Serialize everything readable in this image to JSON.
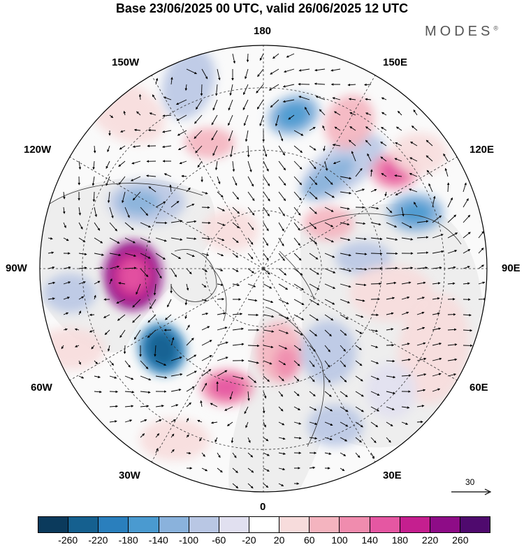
{
  "header": {
    "title": "Base 23/06/2025 00 UTC, valid 26/06/2025 12 UTC",
    "brand": "MODES",
    "brand_mark": "®"
  },
  "map": {
    "projection": "north-polar-stereographic",
    "longitude_labels": {
      "top": "180",
      "bottom": "0",
      "left": "90W",
      "right": "90E",
      "upper_left_1": "150W",
      "upper_left_2": "120W",
      "upper_right_1": "150E",
      "upper_right_2": "120E",
      "lower_left_1": "60W",
      "lower_left_2": "30W",
      "lower_right_1": "60E",
      "lower_right_2": "30E"
    },
    "vector_scale_label": "30",
    "colors": {
      "coastline": "#333333",
      "grid": "#333333",
      "land": "#eeeeee"
    }
  },
  "colorbar": {
    "colors": [
      "#0b3a5c",
      "#15608f",
      "#2a7fbd",
      "#4a9ad0",
      "#8ab2dc",
      "#b9c7e4",
      "#e1e0f0",
      "#ffffff",
      "#f7dcdc",
      "#f4b4bf",
      "#f08cae",
      "#e557a2",
      "#c51f8f",
      "#8e0c87",
      "#4f0a6e"
    ],
    "ticks": [
      "-260",
      "-220",
      "-180",
      "-140",
      "-100",
      "-60",
      "-20",
      "20",
      "60",
      "100",
      "140",
      "180",
      "220",
      "260"
    ]
  }
}
